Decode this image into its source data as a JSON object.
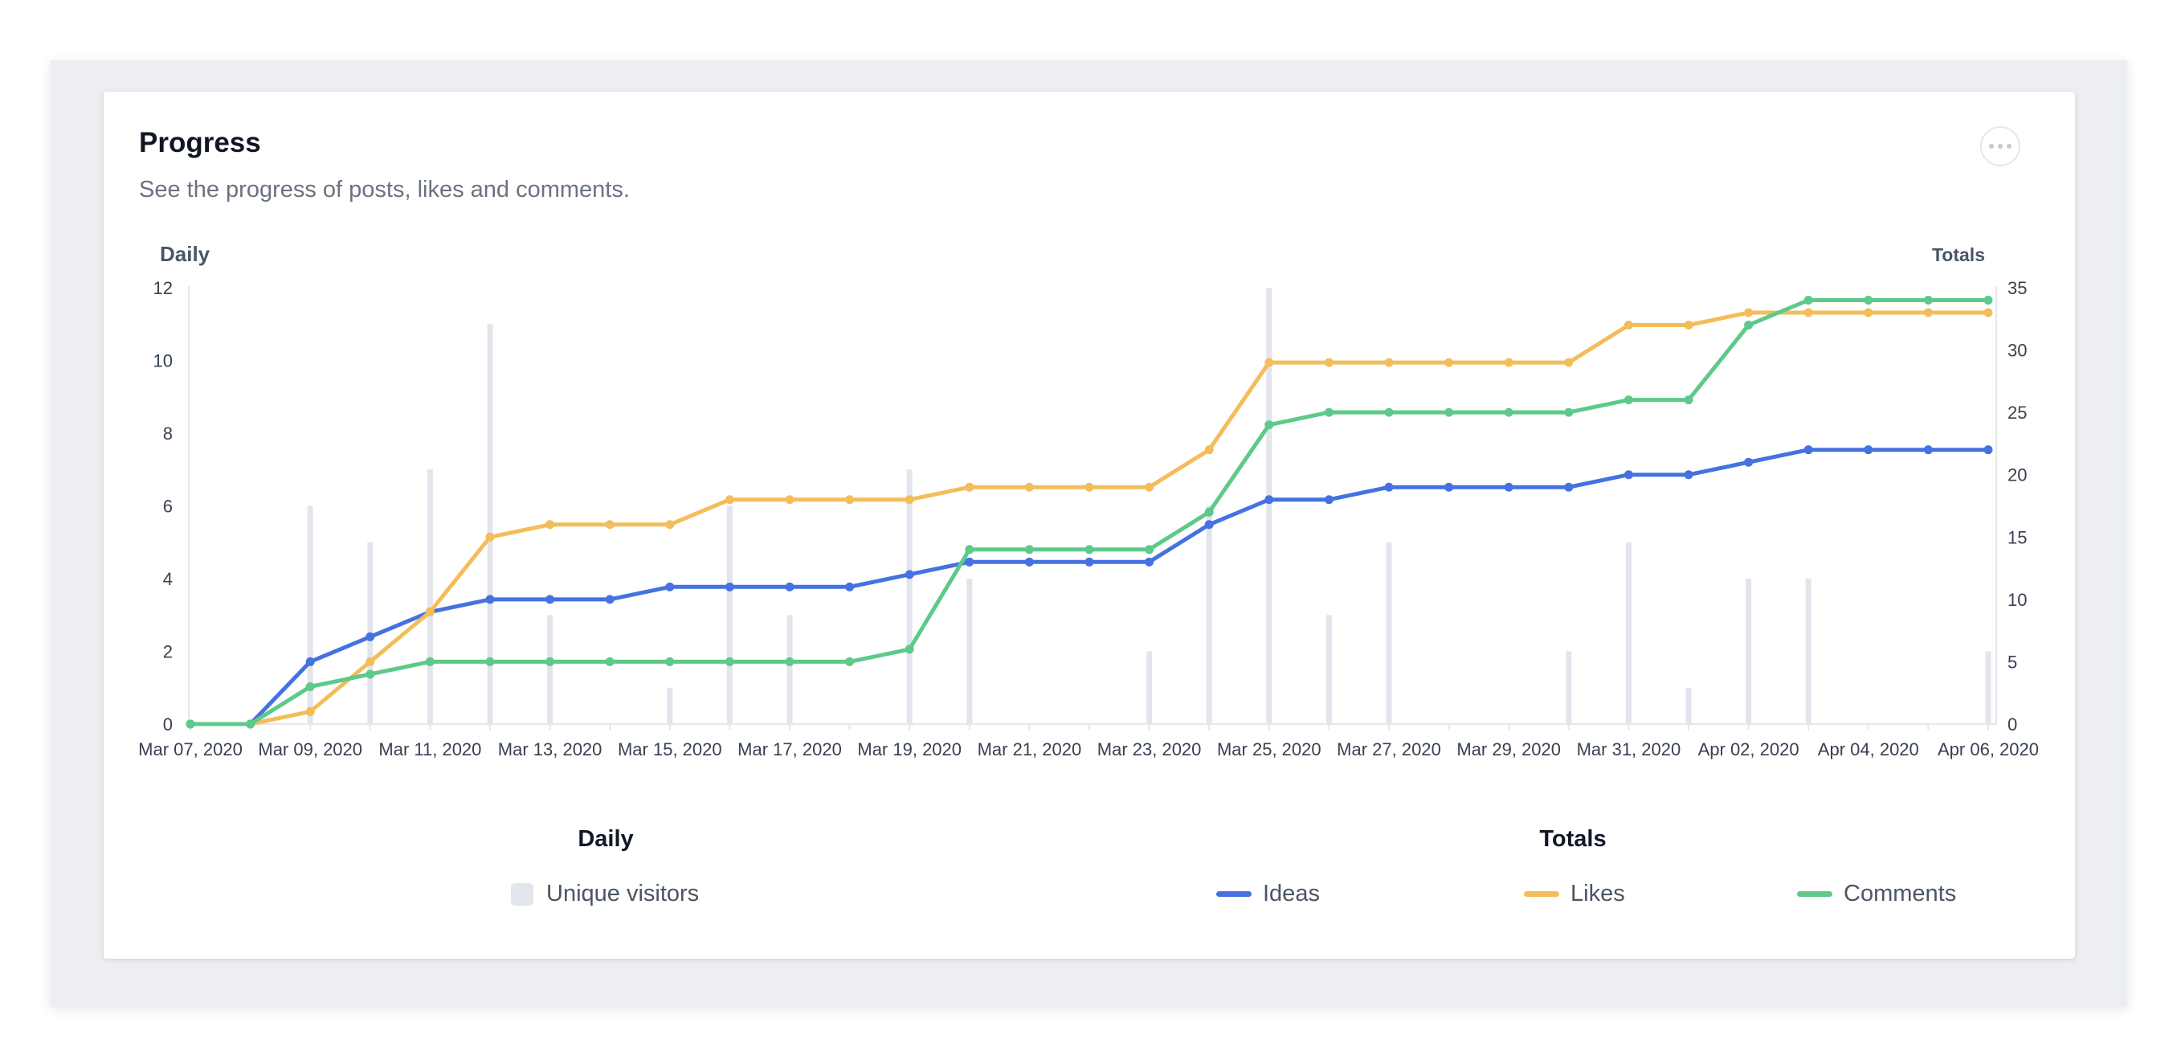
{
  "card": {
    "title": "Progress",
    "subtitle": "See the progress of posts, likes and comments."
  },
  "chart_data": {
    "type": "line",
    "left_axis_label": "Daily",
    "right_axis_label": "Totals",
    "left_ylim": [
      0,
      12
    ],
    "left_ticks": [
      0,
      2,
      4,
      6,
      8,
      10,
      12
    ],
    "right_ylim": [
      0,
      35
    ],
    "right_ticks": [
      0,
      5,
      10,
      15,
      20,
      25,
      30,
      35
    ],
    "x": [
      "Mar 07, 2020",
      "Mar 08, 2020",
      "Mar 09, 2020",
      "Mar 10, 2020",
      "Mar 11, 2020",
      "Mar 12, 2020",
      "Mar 13, 2020",
      "Mar 14, 2020",
      "Mar 15, 2020",
      "Mar 16, 2020",
      "Mar 17, 2020",
      "Mar 18, 2020",
      "Mar 19, 2020",
      "Mar 20, 2020",
      "Mar 21, 2020",
      "Mar 22, 2020",
      "Mar 23, 2020",
      "Mar 24, 2020",
      "Mar 25, 2020",
      "Mar 26, 2020",
      "Mar 27, 2020",
      "Mar 28, 2020",
      "Mar 29, 2020",
      "Mar 30, 2020",
      "Mar 31, 2020",
      "Apr 01, 2020",
      "Apr 02, 2020",
      "Apr 03, 2020",
      "Apr 04, 2020",
      "Apr 05, 2020",
      "Apr 06, 2020"
    ],
    "x_tick_labels": [
      "Mar 07, 2020",
      "Mar 09, 2020",
      "Mar 11, 2020",
      "Mar 13, 2020",
      "Mar 15, 2020",
      "Mar 17, 2020",
      "Mar 19, 2020",
      "Mar 21, 2020",
      "Mar 23, 2020",
      "Mar 25, 2020",
      "Mar 27, 2020",
      "Mar 29, 2020",
      "Mar 31, 2020",
      "Apr 02, 2020",
      "Apr 04, 2020",
      "Apr 06, 2020"
    ],
    "bars": {
      "name": "Unique visitors",
      "axis": "left",
      "color": "#e3e5ec",
      "values": [
        0,
        0,
        6,
        5,
        7,
        11,
        3,
        0,
        1,
        6,
        3,
        0,
        7,
        4,
        0,
        0,
        2,
        6,
        12,
        3,
        5,
        0,
        0,
        2,
        5,
        1,
        4,
        4,
        0,
        0,
        2
      ]
    },
    "series": [
      {
        "name": "Ideas",
        "axis": "right",
        "color": "#4572e0",
        "values": [
          0,
          0,
          5,
          7,
          9,
          10,
          10,
          10,
          11,
          11,
          11,
          11,
          12,
          13,
          13,
          13,
          13,
          16,
          18,
          18,
          19,
          19,
          19,
          19,
          20,
          20,
          21,
          22,
          22,
          22,
          22
        ]
      },
      {
        "name": "Likes",
        "axis": "right",
        "color": "#f3bd5a",
        "values": [
          0,
          0,
          1,
          5,
          9,
          15,
          16,
          16,
          16,
          18,
          18,
          18,
          18,
          19,
          19,
          19,
          19,
          22,
          29,
          29,
          29,
          29,
          29,
          29,
          32,
          32,
          33,
          33,
          33,
          33,
          33
        ]
      },
      {
        "name": "Comments",
        "axis": "right",
        "color": "#5dc98a",
        "values": [
          0,
          0,
          3,
          4,
          5,
          5,
          5,
          5,
          5,
          5,
          5,
          5,
          6,
          14,
          14,
          14,
          14,
          17,
          24,
          25,
          25,
          25,
          25,
          25,
          26,
          26,
          32,
          34,
          34,
          34,
          34
        ]
      }
    ]
  },
  "legend": {
    "daily_heading": "Daily",
    "totals_heading": "Totals",
    "visitors_label": "Unique visitors",
    "ideas_label": "Ideas",
    "likes_label": "Likes",
    "comments_label": "Comments"
  }
}
